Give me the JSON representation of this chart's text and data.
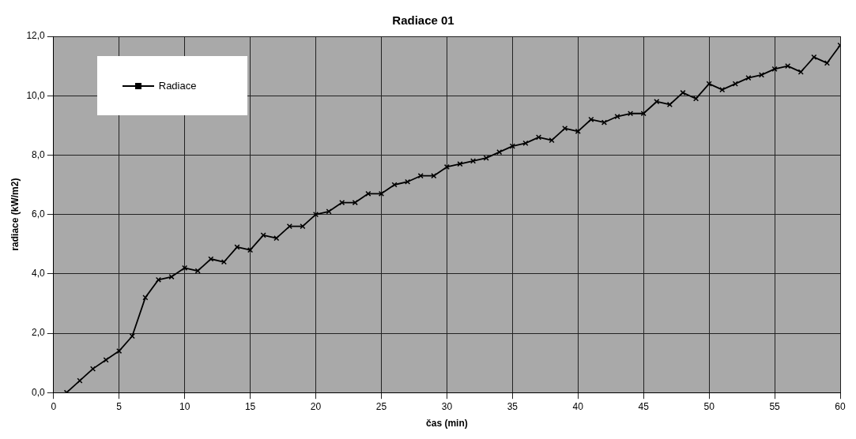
{
  "chart_data": {
    "type": "line",
    "title": "Radiace 01",
    "xlabel": "čas (min)",
    "ylabel": "radiace (kW/m2)",
    "x": [
      1,
      2,
      3,
      4,
      5,
      6,
      7,
      8,
      9,
      10,
      11,
      12,
      13,
      14,
      15,
      16,
      17,
      18,
      19,
      20,
      21,
      22,
      23,
      24,
      25,
      26,
      27,
      28,
      29,
      30,
      31,
      32,
      33,
      34,
      35,
      36,
      37,
      38,
      39,
      40,
      41,
      42,
      43,
      44,
      45,
      46,
      47,
      48,
      49,
      50,
      51,
      52,
      53,
      54,
      55,
      56,
      57,
      58,
      59,
      60
    ],
    "series": [
      {
        "name": "Radiace",
        "color": "#000000",
        "values": [
          0.0,
          0.4,
          0.8,
          1.1,
          1.4,
          1.9,
          3.2,
          3.8,
          3.9,
          4.2,
          4.1,
          4.5,
          4.4,
          4.9,
          4.8,
          5.3,
          5.2,
          5.6,
          5.6,
          6.0,
          6.1,
          6.4,
          6.4,
          6.7,
          6.7,
          7.0,
          7.1,
          7.3,
          7.3,
          7.6,
          7.7,
          7.8,
          7.9,
          8.1,
          8.3,
          8.4,
          8.6,
          8.5,
          8.9,
          8.8,
          9.2,
          9.1,
          9.3,
          9.4,
          9.4,
          9.8,
          9.7,
          10.1,
          9.9,
          10.4,
          10.2,
          10.4,
          10.6,
          10.7,
          10.9,
          11.0,
          10.8,
          11.3,
          11.1,
          11.7
        ]
      }
    ],
    "xlim": [
      0,
      60
    ],
    "xticks": [
      0,
      5,
      10,
      15,
      20,
      25,
      30,
      35,
      40,
      45,
      50,
      55,
      60
    ],
    "ylim": [
      0,
      12
    ],
    "yticks": [
      {
        "value": 0,
        "label": "0,0"
      },
      {
        "value": 2,
        "label": "2,0"
      },
      {
        "value": 4,
        "label": "4,0"
      },
      {
        "value": 6,
        "label": "6,0"
      },
      {
        "value": 8,
        "label": "8,0"
      },
      {
        "value": 10,
        "label": "10,0"
      },
      {
        "value": 12,
        "label": "12,0"
      }
    ],
    "grid": true,
    "legend": "top left",
    "marker": "cross",
    "line_style": "solid"
  }
}
